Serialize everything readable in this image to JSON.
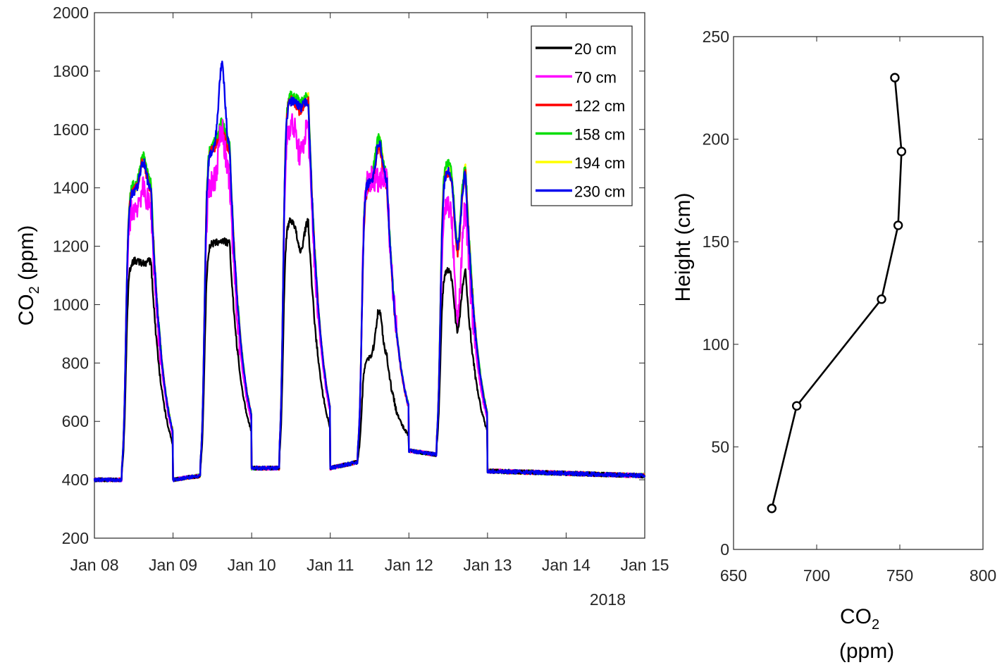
{
  "chart_data": [
    {
      "type": "line",
      "xlabel": "",
      "x_secondary_label": "2018",
      "ylabel_main": "CO",
      "ylabel_sub": "2",
      "ylabel_unit": " (ppm)",
      "xlim": [
        "2018-01-08",
        "2018-01-15"
      ],
      "ylim": [
        200,
        2000
      ],
      "xticks": [
        "Jan 08",
        "Jan 09",
        "Jan 10",
        "Jan 11",
        "Jan 12",
        "Jan 13",
        "Jan 14",
        "Jan 15"
      ],
      "yticks": [
        200,
        400,
        600,
        800,
        1000,
        1200,
        1400,
        1600,
        1800,
        2000
      ],
      "legend_position": "top-right",
      "day_profiles": [
        {
          "day": 0,
          "morning_peak": 1.0,
          "evening_peak": 1.25,
          "late_bump": 1.2
        },
        {
          "day": 1,
          "morning_peak": 1.05,
          "evening_peak": 1.25,
          "late_bump": 0.0
        },
        {
          "day": 2,
          "morning_peak": 1.0,
          "evening_peak": 1.25,
          "late_bump": 0.0
        },
        {
          "day": 3,
          "morning_peak": 1.0,
          "evening_peak": 1.25,
          "late_bump": 0.0
        },
        {
          "day": 4,
          "morning_peak": 1.0,
          "evening_peak": 1.3,
          "late_bump": 0.0
        }
      ],
      "series": [
        {
          "name": "20 cm",
          "color": "#000000",
          "peaks": [
            1150,
            1210,
            1290,
            820,
            1120
          ],
          "second_peaks": [
            1140,
            1220,
            1170,
            1000,
            890
          ]
        },
        {
          "name": "70 cm",
          "color": "#ff00ff",
          "peaks": [
            1330,
            1420,
            1620,
            1430,
            1350
          ],
          "second_peaks": [
            1400,
            1620,
            1500,
            1420,
            900
          ]
        },
        {
          "name": "122 cm",
          "color": "#ff0000",
          "peaks": [
            1390,
            1530,
            1700,
            1400,
            1460
          ],
          "second_peaks": [
            1500,
            1600,
            1660,
            1560,
            1150
          ]
        },
        {
          "name": "158 cm",
          "color": "#00dd00",
          "peaks": [
            1410,
            1550,
            1720,
            1440,
            1490
          ],
          "second_peaks": [
            1520,
            1630,
            1690,
            1590,
            1170
          ]
        },
        {
          "name": "194 cm",
          "color": "#ffff00",
          "peaks": [
            1400,
            1540,
            1710,
            1430,
            1480
          ],
          "second_peaks": [
            1510,
            1620,
            1680,
            1580,
            1160
          ]
        },
        {
          "name": "230 cm",
          "color": "#0000ee",
          "peaks": [
            1390,
            1530,
            1700,
            1420,
            1460
          ],
          "second_peaks": [
            1500,
            1850,
            1670,
            1570,
            1170
          ]
        }
      ],
      "night_baseline": [
        400,
        440,
        440,
        500,
        460
      ],
      "final_baseline": 415
    },
    {
      "type": "line",
      "xlabel_main": "CO",
      "xlabel_sub": "2",
      "xlabel_unit": "(ppm)",
      "ylabel": "Height (cm)",
      "xlim": [
        650,
        800
      ],
      "ylim": [
        0,
        250
      ],
      "xticks": [
        650,
        700,
        750,
        800
      ],
      "yticks": [
        0,
        50,
        100,
        150,
        200,
        250
      ],
      "points": [
        {
          "x": 673,
          "y": 20
        },
        {
          "x": 688,
          "y": 70
        },
        {
          "x": 739,
          "y": 122
        },
        {
          "x": 749,
          "y": 158
        },
        {
          "x": 751,
          "y": 194
        },
        {
          "x": 747,
          "y": 230
        }
      ]
    }
  ]
}
